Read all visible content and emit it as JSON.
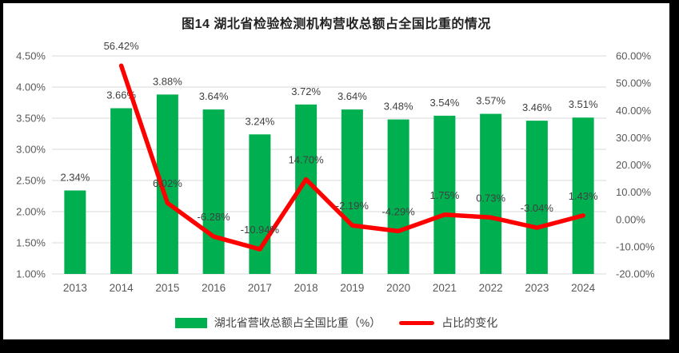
{
  "title": "图14 湖北省检验检测机构营收总额占全国比重的情况",
  "legend": {
    "bar_label": "湖北省营收总额占全国比重（%）",
    "line_label": "占比的变化"
  },
  "colors": {
    "background": "#000000",
    "surface": "#ffffff",
    "bar": "#00B050",
    "line": "#FF0000",
    "grid": "#D9D9D9",
    "axis_text": "#595959",
    "data_label_text": "#404040",
    "title_text": "#222222"
  },
  "chart_data": {
    "type": "bar+line combo",
    "title": "图14 湖北省检验检测机构营收总额占全国比重的情况",
    "categories": [
      "2013",
      "2014",
      "2015",
      "2016",
      "2017",
      "2018",
      "2019",
      "2020",
      "2021",
      "2022",
      "2023",
      "2024"
    ],
    "series": [
      {
        "name": "湖北省营收总额占全国比重（%）",
        "type": "bar",
        "axis": "left",
        "values": [
          2.34,
          3.66,
          3.88,
          3.64,
          3.24,
          3.72,
          3.64,
          3.48,
          3.54,
          3.57,
          3.46,
          3.51
        ],
        "labels": [
          "2.34%",
          "3.66%",
          "3.88%",
          "3.64%",
          "3.24%",
          "3.72%",
          "3.64%",
          "3.48%",
          "3.54%",
          "3.57%",
          "3.46%",
          "3.51%"
        ]
      },
      {
        "name": "占比的变化",
        "type": "line",
        "axis": "right",
        "values": [
          null,
          56.42,
          6.02,
          -6.28,
          -10.94,
          14.7,
          -2.19,
          -4.29,
          1.75,
          0.73,
          -3.04,
          1.43
        ],
        "labels": [
          null,
          "56.42%",
          "6.02%",
          "-6.28%",
          "-10.94%",
          "14.70%",
          "-2.19%",
          "-4.29%",
          "1.75%",
          "0.73%",
          "-3.04%",
          "1.43%"
        ]
      }
    ],
    "left_axis": {
      "min": 1.0,
      "max": 4.5,
      "ticks": [
        "4.50%",
        "4.00%",
        "3.50%",
        "3.00%",
        "2.50%",
        "2.00%",
        "1.50%",
        "1.00%"
      ]
    },
    "right_axis": {
      "min": -20,
      "max": 60,
      "ticks": [
        "60.00%",
        "50.00%",
        "40.00%",
        "30.00%",
        "20.00%",
        "10.00%",
        "0.00%",
        "-10.00%",
        "-20.00%"
      ]
    },
    "grid": true,
    "legend_position": "bottom"
  }
}
